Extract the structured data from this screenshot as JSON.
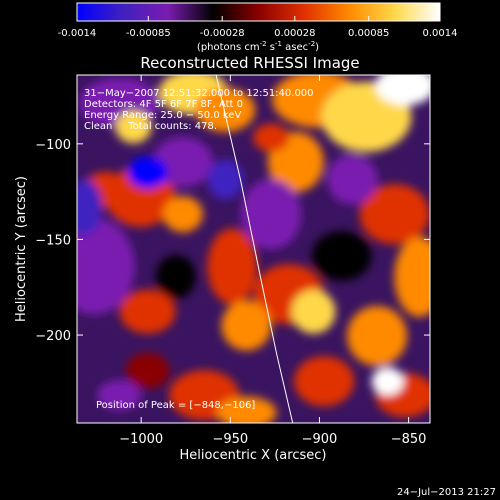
{
  "colorbar": {
    "tick_labels": [
      "-0.0014",
      "-0.00085",
      "-0.00028",
      "0.00028",
      "0.00085",
      "0.0014"
    ],
    "tick_values": [
      -0.0014,
      -0.00085,
      -0.00028,
      0.00028,
      0.00085,
      0.0014
    ],
    "range": [
      -0.0014,
      0.0014
    ],
    "unit_label_parts": [
      "(photons cm",
      "-2",
      " s",
      "-1",
      " asec",
      "-2",
      ")"
    ],
    "colormap": [
      "#0000ff",
      "#4020c0",
      "#7a1cb0",
      "#000000",
      "#8a0000",
      "#e03000",
      "#ff8a00",
      "#ffd84a",
      "#ffffff"
    ]
  },
  "chart_data": {
    "type": "heatmap",
    "title": "Reconstructed RHESSI Image",
    "xlabel": "Heliocentric X (arcsec)",
    "ylabel": "Heliocentric Y (arcsec)",
    "xlim": [
      -1036,
      -838
    ],
    "ylim": [
      -246,
      -64
    ],
    "x_ticks": [
      -1000,
      -950,
      -900,
      -850
    ],
    "x_tick_labels": [
      "−1000",
      "−950",
      "−900",
      "−850"
    ],
    "y_ticks": [
      -100,
      -150,
      -200
    ],
    "y_tick_labels": [
      "−100",
      "−150",
      "−200"
    ],
    "value_range": [
      -0.0014,
      0.0014
    ],
    "peak_position": [
      -848,
      -106
    ],
    "limb_curve": [
      [
        -958,
        -64
      ],
      [
        -944,
        -120
      ],
      [
        -933,
        -170
      ],
      [
        -924,
        -210
      ],
      [
        -915,
        -246
      ]
    ],
    "info_lines": [
      "31−May−2007 12:51:32.000 to 12:51:40.000",
      "Detectors: 4F 5F 6F 7F 8F, Att 0",
      "Energy Range: 25.0 − 50.0 keV",
      "Clean     Total counts: 478."
    ],
    "peak_label": "Position of Peak = [−848,−106]"
  },
  "footer": {
    "timestamp": "24−Jul−2013 21:27"
  }
}
